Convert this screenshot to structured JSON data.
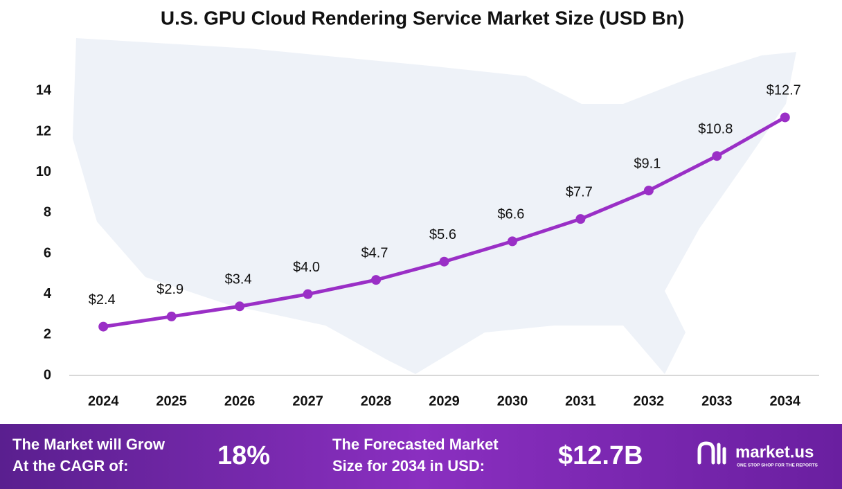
{
  "chart_data": {
    "type": "line",
    "title": "U.S. GPU Cloud Rendering Service Market Size (USD Bn)",
    "categories": [
      "2024",
      "2025",
      "2026",
      "2027",
      "2028",
      "2029",
      "2030",
      "2031",
      "2032",
      "2033",
      "2034"
    ],
    "values": [
      2.4,
      2.9,
      3.4,
      4.0,
      4.7,
      5.6,
      6.6,
      7.7,
      9.1,
      10.8,
      12.7
    ],
    "value_labels": [
      "$2.4",
      "$2.9",
      "$3.4",
      "$4.0",
      "$4.7",
      "$5.6",
      "$6.6",
      "$7.7",
      "$9.1",
      "$10.8",
      "$12.7"
    ],
    "color": "#9a2fc6",
    "ylim": [
      0,
      15
    ],
    "yticks": [
      0,
      2,
      4,
      6,
      8,
      10,
      12,
      14
    ],
    "grid": false
  },
  "footer": {
    "cagr_label": [
      "The Market will Grow",
      "At the CAGR of:"
    ],
    "cagr_value": "18%",
    "forecast_label": [
      "The Forecasted Market",
      "Size for 2034 in USD:"
    ],
    "forecast_value": "$12.7B",
    "brand": "market.us",
    "tagline": "ONE STOP SHOP FOR THE REPORTS"
  }
}
